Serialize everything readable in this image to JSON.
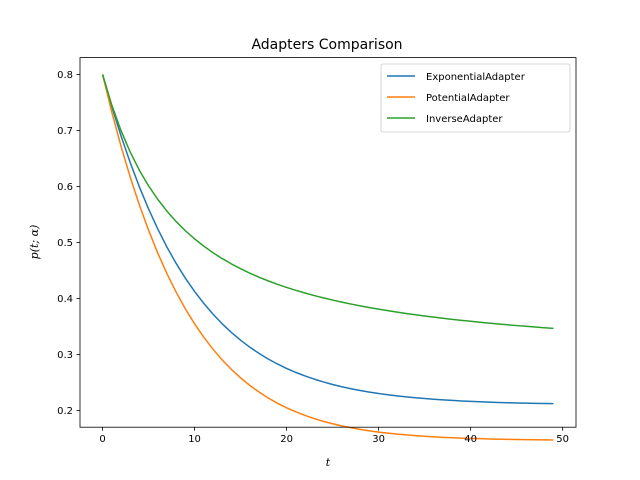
{
  "chart_data": {
    "type": "line",
    "title": "Adapters Comparison",
    "xlabel": "t",
    "ylabel": "p(t; α)",
    "xlim": [
      -2.45,
      51.45
    ],
    "ylim": [
      0.17,
      0.83
    ],
    "xticks": [
      0,
      10,
      20,
      30,
      40,
      50
    ],
    "yticks": [
      0.2,
      0.3,
      0.4,
      0.5,
      0.6,
      0.7,
      0.8
    ],
    "grid": false,
    "legend_position": "top-right",
    "series": [
      {
        "name": "ExponentialAdapter",
        "color": "#1f77b4",
        "x": [
          0,
          1,
          2,
          3,
          4,
          5,
          6,
          7,
          8,
          9,
          10,
          11,
          12,
          13,
          14,
          15,
          16,
          17,
          18,
          19,
          20,
          21,
          22,
          23,
          24,
          25,
          26,
          27,
          28,
          29,
          30,
          31,
          32,
          33,
          34,
          35,
          36,
          37,
          38,
          39,
          40,
          41,
          42,
          43,
          44,
          45,
          46,
          47,
          48,
          49
        ],
        "y": [
          0.8,
          0.7429,
          0.6906,
          0.6428,
          0.5993,
          0.5598,
          0.524,
          0.4916,
          0.4624,
          0.4361,
          0.4124,
          0.3911,
          0.3719,
          0.3547,
          0.3392,
          0.3254,
          0.3129,
          0.3018,
          0.2918,
          0.2829,
          0.275,
          0.2679,
          0.2615,
          0.2559,
          0.2508,
          0.2463,
          0.2423,
          0.2387,
          0.2355,
          0.2327,
          0.2302,
          0.2279,
          0.2259,
          0.2242,
          0.2226,
          0.2212,
          0.2199,
          0.2188,
          0.2178,
          0.2169,
          0.2161,
          0.2154,
          0.2148,
          0.2142,
          0.2137,
          0.2133,
          0.2129,
          0.2126,
          0.2123,
          0.212
        ]
      },
      {
        "name": "PotentialAdapter",
        "color": "#ff7f0e",
        "x": [
          0,
          1,
          2,
          3,
          4,
          5,
          6,
          7,
          8,
          9,
          10,
          11,
          12,
          13,
          14,
          15,
          16,
          17,
          18,
          19,
          20,
          21,
          22,
          23,
          24,
          25,
          26,
          27,
          28,
          29,
          30,
          31,
          32,
          33,
          34,
          35,
          36,
          37,
          38,
          39,
          40,
          41,
          42,
          43,
          44,
          45,
          46,
          47,
          48,
          49
        ],
        "y": [
          0.8,
          0.733,
          0.6722,
          0.617,
          0.567,
          0.5218,
          0.481,
          0.4442,
          0.4111,
          0.3813,
          0.3546,
          0.3307,
          0.3093,
          0.2902,
          0.2732,
          0.2581,
          0.2447,
          0.2328,
          0.2222,
          0.2129,
          0.2046,
          0.1974,
          0.191,
          0.1854,
          0.1804,
          0.1761,
          0.1723,
          0.169,
          0.1661,
          0.1635,
          0.1613,
          0.1594,
          0.1577,
          0.1562,
          0.1549,
          0.1538,
          0.1528,
          0.1519,
          0.1512,
          0.1505,
          0.15,
          0.1495,
          0.149,
          0.1486,
          0.1483,
          0.148,
          0.1478,
          0.1476,
          0.1474,
          0.1472
        ]
      },
      {
        "name": "InverseAdapter",
        "color": "#2ca02c",
        "x": [
          0,
          1,
          2,
          3,
          4,
          5,
          6,
          7,
          8,
          9,
          10,
          11,
          12,
          13,
          14,
          15,
          16,
          17,
          18,
          19,
          20,
          21,
          22,
          23,
          24,
          25,
          26,
          27,
          28,
          29,
          30,
          31,
          32,
          33,
          34,
          35,
          36,
          37,
          38,
          39,
          40,
          41,
          42,
          43,
          44,
          45,
          46,
          47,
          48,
          49
        ],
        "y": [
          0.8,
          0.7455,
          0.6999,
          0.6615,
          0.6289,
          0.601,
          0.5768,
          0.5557,
          0.5372,
          0.5208,
          0.5063,
          0.4933,
          0.4816,
          0.4711,
          0.4616,
          0.453,
          0.4451,
          0.4379,
          0.4313,
          0.4252,
          0.4196,
          0.4144,
          0.4096,
          0.4051,
          0.4009,
          0.397,
          0.3933,
          0.3899,
          0.3867,
          0.3836,
          0.3808,
          0.3781,
          0.3755,
          0.3731,
          0.3708,
          0.3686,
          0.3665,
          0.3645,
          0.3626,
          0.3608,
          0.3591,
          0.3574,
          0.3559,
          0.3543,
          0.3529,
          0.3515,
          0.3502,
          0.3489,
          0.3477,
          0.3465
        ]
      }
    ]
  }
}
